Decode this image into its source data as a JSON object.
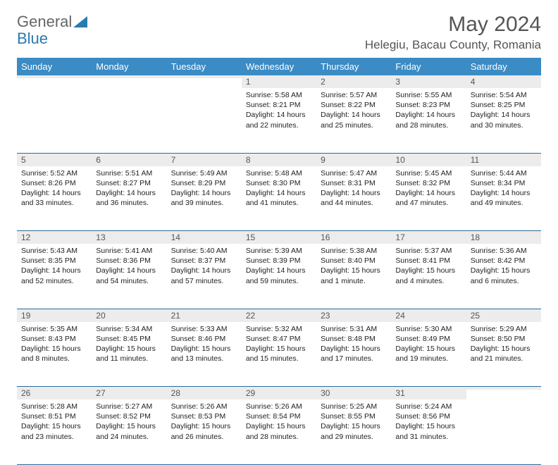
{
  "logo": {
    "part1": "General",
    "part2": "Blue"
  },
  "title": "May 2024",
  "location": "Helegiu, Bacau County, Romania",
  "dayHeaders": [
    "Sunday",
    "Monday",
    "Tuesday",
    "Wednesday",
    "Thursday",
    "Friday",
    "Saturday"
  ],
  "colors": {
    "headerBg": "#3b8bc4",
    "headerText": "#ffffff",
    "dayNumBg": "#ececec",
    "borderColor": "#2a6a9a",
    "logoBlue": "#2a7ab0",
    "titleColor": "#555555"
  },
  "weeks": [
    [
      {
        "n": "",
        "sr": "",
        "ss": "",
        "dl": ""
      },
      {
        "n": "",
        "sr": "",
        "ss": "",
        "dl": ""
      },
      {
        "n": "",
        "sr": "",
        "ss": "",
        "dl": ""
      },
      {
        "n": "1",
        "sr": "Sunrise: 5:58 AM",
        "ss": "Sunset: 8:21 PM",
        "dl": "Daylight: 14 hours and 22 minutes."
      },
      {
        "n": "2",
        "sr": "Sunrise: 5:57 AM",
        "ss": "Sunset: 8:22 PM",
        "dl": "Daylight: 14 hours and 25 minutes."
      },
      {
        "n": "3",
        "sr": "Sunrise: 5:55 AM",
        "ss": "Sunset: 8:23 PM",
        "dl": "Daylight: 14 hours and 28 minutes."
      },
      {
        "n": "4",
        "sr": "Sunrise: 5:54 AM",
        "ss": "Sunset: 8:25 PM",
        "dl": "Daylight: 14 hours and 30 minutes."
      }
    ],
    [
      {
        "n": "5",
        "sr": "Sunrise: 5:52 AM",
        "ss": "Sunset: 8:26 PM",
        "dl": "Daylight: 14 hours and 33 minutes."
      },
      {
        "n": "6",
        "sr": "Sunrise: 5:51 AM",
        "ss": "Sunset: 8:27 PM",
        "dl": "Daylight: 14 hours and 36 minutes."
      },
      {
        "n": "7",
        "sr": "Sunrise: 5:49 AM",
        "ss": "Sunset: 8:29 PM",
        "dl": "Daylight: 14 hours and 39 minutes."
      },
      {
        "n": "8",
        "sr": "Sunrise: 5:48 AM",
        "ss": "Sunset: 8:30 PM",
        "dl": "Daylight: 14 hours and 41 minutes."
      },
      {
        "n": "9",
        "sr": "Sunrise: 5:47 AM",
        "ss": "Sunset: 8:31 PM",
        "dl": "Daylight: 14 hours and 44 minutes."
      },
      {
        "n": "10",
        "sr": "Sunrise: 5:45 AM",
        "ss": "Sunset: 8:32 PM",
        "dl": "Daylight: 14 hours and 47 minutes."
      },
      {
        "n": "11",
        "sr": "Sunrise: 5:44 AM",
        "ss": "Sunset: 8:34 PM",
        "dl": "Daylight: 14 hours and 49 minutes."
      }
    ],
    [
      {
        "n": "12",
        "sr": "Sunrise: 5:43 AM",
        "ss": "Sunset: 8:35 PM",
        "dl": "Daylight: 14 hours and 52 minutes."
      },
      {
        "n": "13",
        "sr": "Sunrise: 5:41 AM",
        "ss": "Sunset: 8:36 PM",
        "dl": "Daylight: 14 hours and 54 minutes."
      },
      {
        "n": "14",
        "sr": "Sunrise: 5:40 AM",
        "ss": "Sunset: 8:37 PM",
        "dl": "Daylight: 14 hours and 57 minutes."
      },
      {
        "n": "15",
        "sr": "Sunrise: 5:39 AM",
        "ss": "Sunset: 8:39 PM",
        "dl": "Daylight: 14 hours and 59 minutes."
      },
      {
        "n": "16",
        "sr": "Sunrise: 5:38 AM",
        "ss": "Sunset: 8:40 PM",
        "dl": "Daylight: 15 hours and 1 minute."
      },
      {
        "n": "17",
        "sr": "Sunrise: 5:37 AM",
        "ss": "Sunset: 8:41 PM",
        "dl": "Daylight: 15 hours and 4 minutes."
      },
      {
        "n": "18",
        "sr": "Sunrise: 5:36 AM",
        "ss": "Sunset: 8:42 PM",
        "dl": "Daylight: 15 hours and 6 minutes."
      }
    ],
    [
      {
        "n": "19",
        "sr": "Sunrise: 5:35 AM",
        "ss": "Sunset: 8:43 PM",
        "dl": "Daylight: 15 hours and 8 minutes."
      },
      {
        "n": "20",
        "sr": "Sunrise: 5:34 AM",
        "ss": "Sunset: 8:45 PM",
        "dl": "Daylight: 15 hours and 11 minutes."
      },
      {
        "n": "21",
        "sr": "Sunrise: 5:33 AM",
        "ss": "Sunset: 8:46 PM",
        "dl": "Daylight: 15 hours and 13 minutes."
      },
      {
        "n": "22",
        "sr": "Sunrise: 5:32 AM",
        "ss": "Sunset: 8:47 PM",
        "dl": "Daylight: 15 hours and 15 minutes."
      },
      {
        "n": "23",
        "sr": "Sunrise: 5:31 AM",
        "ss": "Sunset: 8:48 PM",
        "dl": "Daylight: 15 hours and 17 minutes."
      },
      {
        "n": "24",
        "sr": "Sunrise: 5:30 AM",
        "ss": "Sunset: 8:49 PM",
        "dl": "Daylight: 15 hours and 19 minutes."
      },
      {
        "n": "25",
        "sr": "Sunrise: 5:29 AM",
        "ss": "Sunset: 8:50 PM",
        "dl": "Daylight: 15 hours and 21 minutes."
      }
    ],
    [
      {
        "n": "26",
        "sr": "Sunrise: 5:28 AM",
        "ss": "Sunset: 8:51 PM",
        "dl": "Daylight: 15 hours and 23 minutes."
      },
      {
        "n": "27",
        "sr": "Sunrise: 5:27 AM",
        "ss": "Sunset: 8:52 PM",
        "dl": "Daylight: 15 hours and 24 minutes."
      },
      {
        "n": "28",
        "sr": "Sunrise: 5:26 AM",
        "ss": "Sunset: 8:53 PM",
        "dl": "Daylight: 15 hours and 26 minutes."
      },
      {
        "n": "29",
        "sr": "Sunrise: 5:26 AM",
        "ss": "Sunset: 8:54 PM",
        "dl": "Daylight: 15 hours and 28 minutes."
      },
      {
        "n": "30",
        "sr": "Sunrise: 5:25 AM",
        "ss": "Sunset: 8:55 PM",
        "dl": "Daylight: 15 hours and 29 minutes."
      },
      {
        "n": "31",
        "sr": "Sunrise: 5:24 AM",
        "ss": "Sunset: 8:56 PM",
        "dl": "Daylight: 15 hours and 31 minutes."
      },
      {
        "n": "",
        "sr": "",
        "ss": "",
        "dl": ""
      }
    ]
  ]
}
